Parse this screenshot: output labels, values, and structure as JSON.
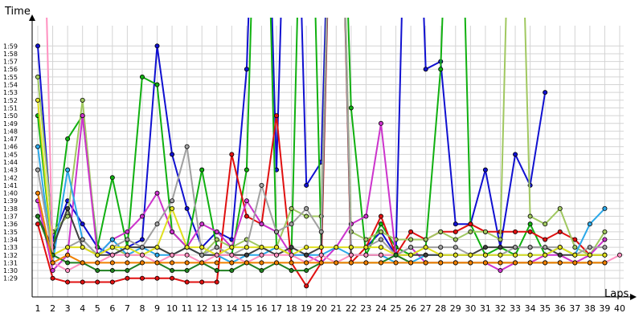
{
  "chart_data": {
    "type": "line",
    "ylabel": "Time",
    "xlabel": "Laps",
    "grid": true,
    "legend": "none",
    "ylim_seconds": [
      87,
      121
    ],
    "y_ticks": [
      "1:29",
      "1:30",
      "1:31",
      "1:32",
      "1:33",
      "1:34",
      "1:35",
      "1:36",
      "1:37",
      "1:38",
      "1:39",
      "1:40",
      "1:41",
      "1:42",
      "1:43",
      "1:44",
      "1:45",
      "1:46",
      "1:47",
      "1:48",
      "1:49",
      "1:50",
      "1:51",
      "1:52",
      "1:53",
      "1:54",
      "1:55",
      "1:56",
      "1:57",
      "1:58",
      "1:59"
    ],
    "x": [
      1,
      2,
      3,
      4,
      5,
      6,
      7,
      8,
      9,
      10,
      11,
      12,
      13,
      14,
      15,
      16,
      17,
      18,
      19,
      20,
      21,
      22,
      23,
      24,
      25,
      26,
      27,
      28,
      29,
      30,
      31,
      32,
      33,
      34,
      35,
      36,
      37,
      38,
      39,
      40
    ],
    "series": [
      {
        "color": "#1010d0",
        "values_sec": [
          119,
          94,
          99,
          96,
          93,
          92,
          93,
          94,
          119,
          105,
          98,
          93,
          95,
          94,
          116,
          170,
          103,
          170,
          101,
          104,
          170,
          93,
          93,
          95,
          92,
          170,
          116,
          117,
          96,
          96,
          103,
          93,
          105,
          101,
          113,
          null,
          null,
          null,
          null,
          null
        ]
      },
      {
        "color": "#10b010",
        "values_sec": [
          110,
          92,
          107,
          110,
          93,
          102,
          93,
          115,
          114,
          95,
          93,
          103,
          93,
          92,
          103,
          170,
          93,
          92,
          170,
          93,
          170,
          111,
          92,
          96,
          93,
          92,
          93,
          116,
          170,
          96,
          92,
          93,
          92,
          96,
          92,
          93,
          92,
          92,
          92,
          null
        ]
      },
      {
        "color": "#e01010",
        "values_sec": [
          96,
          89,
          88.5,
          88.5,
          88.5,
          88.5,
          89,
          89,
          89,
          89,
          88.5,
          88.5,
          88.5,
          105,
          97,
          96,
          110,
          91,
          88,
          91,
          170,
          91,
          93,
          97,
          92,
          95,
          94,
          95,
          95,
          96,
          95,
          95,
          95,
          95,
          94,
          95,
          94,
          92,
          null,
          null
        ]
      },
      {
        "color": "#a0c860",
        "values_sec": [
          115,
          95,
          97,
          112,
          92,
          93,
          92,
          92,
          93,
          92,
          93,
          92,
          94,
          93,
          94,
          93,
          93,
          98,
          97,
          97,
          170,
          95,
          94,
          95,
          94,
          94,
          94,
          95,
          94,
          95,
          95,
          94,
          170,
          97,
          96,
          98,
          93,
          92,
          95,
          null
        ]
      },
      {
        "color": "#cc33cc",
        "values_sec": [
          99,
          90,
          92,
          110,
          92,
          94,
          95,
          97,
          100,
          95,
          93,
          96,
          95,
          93,
          99,
          96,
          95,
          92,
          92,
          91,
          93,
          96,
          97,
          109,
          92,
          93,
          91,
          91,
          91,
          91,
          91,
          90,
          91,
          91,
          92,
          92,
          91,
          92,
          94,
          null
        ]
      },
      {
        "color": "#2ba8e8",
        "values_sec": [
          106,
          91,
          103,
          94,
          92,
          94,
          92,
          93,
          92,
          92,
          93,
          92,
          92,
          91,
          92,
          92,
          93,
          92,
          92,
          92,
          93,
          92,
          92,
          92,
          91,
          91,
          92,
          92,
          92,
          92,
          92,
          92,
          92,
          92,
          92,
          93,
          92,
          96,
          98,
          null
        ]
      },
      {
        "color": "#404040",
        "values_sec": [
          97,
          93,
          98,
          93,
          92,
          92,
          93,
          93,
          93,
          92,
          93,
          92,
          92,
          92,
          92,
          93,
          92,
          93,
          92,
          93,
          170,
          92,
          92,
          92,
          92,
          92,
          92,
          92,
          92,
          92,
          93,
          93,
          93,
          93,
          93,
          92,
          92,
          92,
          92,
          null
        ]
      },
      {
        "color": "#a0a0a0",
        "values_sec": [
          103,
          92,
          93,
          94,
          92,
          93,
          94,
          93,
          96,
          99,
          106,
          92,
          93,
          92,
          93,
          101,
          95,
          96,
          98,
          95,
          170,
          93,
          93,
          94,
          92,
          93,
          93,
          93,
          93,
          92,
          92,
          92,
          93,
          93,
          93,
          93,
          92,
          93,
          93,
          null
        ]
      },
      {
        "color": "#e0e020",
        "values_sec": [
          112,
          92,
          93,
          93,
          92,
          93,
          93,
          92,
          93,
          98,
          93,
          93,
          92,
          93,
          93,
          93,
          93,
          92,
          93,
          93,
          93,
          93,
          93,
          93,
          92,
          92,
          93,
          92,
          92,
          92,
          92,
          92,
          92,
          92,
          92,
          93,
          92,
          92,
          92,
          null
        ]
      },
      {
        "color": "#ff90c0",
        "values_sec": [
          170,
          91,
          90,
          91,
          91,
          92,
          92,
          92,
          91,
          92,
          92,
          91,
          92,
          92,
          91,
          92,
          92,
          92,
          91,
          92,
          91,
          92,
          92,
          92,
          92,
          91,
          91,
          91,
          91,
          91,
          91,
          91,
          91,
          91,
          91,
          91,
          91,
          91,
          91,
          92
        ]
      },
      {
        "color": "#208020",
        "values_sec": [
          97,
          92,
          91,
          91,
          90,
          90,
          90,
          91,
          91,
          90,
          90,
          91,
          90,
          90,
          91,
          90,
          91,
          90,
          90,
          91,
          91,
          91,
          91,
          91,
          92,
          91,
          91,
          91,
          91,
          91,
          91,
          91,
          91,
          91,
          91,
          91,
          91,
          91,
          91,
          null
        ]
      },
      {
        "color": "#f08000",
        "values_sec": [
          100,
          91,
          92,
          91,
          91,
          91,
          91,
          91,
          91,
          91,
          91,
          91,
          91,
          91,
          91,
          91,
          91,
          91,
          91,
          91,
          91,
          91,
          91,
          91,
          91,
          91,
          91,
          91,
          91,
          91,
          91,
          91,
          91,
          91,
          91,
          91,
          91,
          91,
          91,
          null
        ]
      }
    ]
  }
}
